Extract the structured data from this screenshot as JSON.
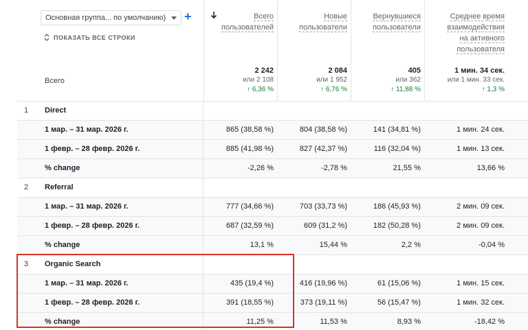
{
  "toolbar": {
    "dimension_select": "Основная группа... по умолчанию)",
    "show_all_rows": "ПОКАЗАТЬ ВСЕ СТРОКИ"
  },
  "columns": [
    {
      "lines": [
        "Всего",
        "пользователей"
      ]
    },
    {
      "lines": [
        "Новые",
        "пользователи"
      ]
    },
    {
      "lines": [
        "Вернувшиеся",
        "пользователи"
      ]
    },
    {
      "lines": [
        "Среднее время",
        "взаимодействия",
        "на активного",
        "пользователя"
      ]
    }
  ],
  "totals": {
    "label": "Всего",
    "values": [
      {
        "value": "2 242",
        "prev": "или 2 108",
        "change": "↑ 6,36 %"
      },
      {
        "value": "2 084",
        "prev": "или 1 952",
        "change": "↑ 6,76 %"
      },
      {
        "value": "405",
        "prev": "или 362",
        "change": "↑ 11,88 %"
      },
      {
        "value": "1 мин. 34 сек.",
        "prev": "или 1 мин. 33 сек.",
        "change": "↑ 1,3 %"
      }
    ]
  },
  "groups": [
    {
      "index": "1",
      "name": "Direct",
      "rows": [
        {
          "label": "1 мар. – 31 мар. 2026 г.",
          "cells": [
            "865 (38,58 %)",
            "804 (38,58 %)",
            "141 (34,81 %)",
            "1 мин. 24 сек."
          ]
        },
        {
          "label": "1 февр. – 28 февр. 2026 г.",
          "cells": [
            "885 (41,98 %)",
            "827 (42,37 %)",
            "116 (32,04 %)",
            "1 мин. 13 сек."
          ]
        },
        {
          "label": "% change",
          "cells": [
            "-2,26 %",
            "-2,78 %",
            "21,55 %",
            "13,66 %"
          ]
        }
      ]
    },
    {
      "index": "2",
      "name": "Referral",
      "rows": [
        {
          "label": "1 мар. – 31 мар. 2026 г.",
          "cells": [
            "777 (34,66 %)",
            "703 (33,73 %)",
            "186 (45,93 %)",
            "2 мин. 09 сек."
          ]
        },
        {
          "label": "1 февр. – 28 февр. 2026 г.",
          "cells": [
            "687 (32,59 %)",
            "609 (31,2 %)",
            "182 (50,28 %)",
            "2 мин. 09 сек."
          ]
        },
        {
          "label": "% change",
          "cells": [
            "13,1 %",
            "15,44 %",
            "2,2 %",
            "-0,04 %"
          ]
        }
      ]
    },
    {
      "index": "3",
      "name": "Organic Search",
      "rows": [
        {
          "label": "1 мар. – 31 мар. 2026 г.",
          "cells": [
            "435 (19,4 %)",
            "416 (19,96 %)",
            "61 (15,06 %)",
            "1 мин. 15 сек."
          ]
        },
        {
          "label": "1 февр. – 28 февр. 2026 г.",
          "cells": [
            "391 (18,55 %)",
            "373 (19,11 %)",
            "56 (15,47 %)",
            "1 мин. 32 сек."
          ]
        },
        {
          "label": "% change",
          "cells": [
            "11,25 %",
            "11,53 %",
            "8,93 %",
            "-18,42 %"
          ]
        }
      ]
    }
  ],
  "colors": {
    "highlight": "#d93025",
    "accent": "#1a73e8",
    "positive": "#188038"
  }
}
